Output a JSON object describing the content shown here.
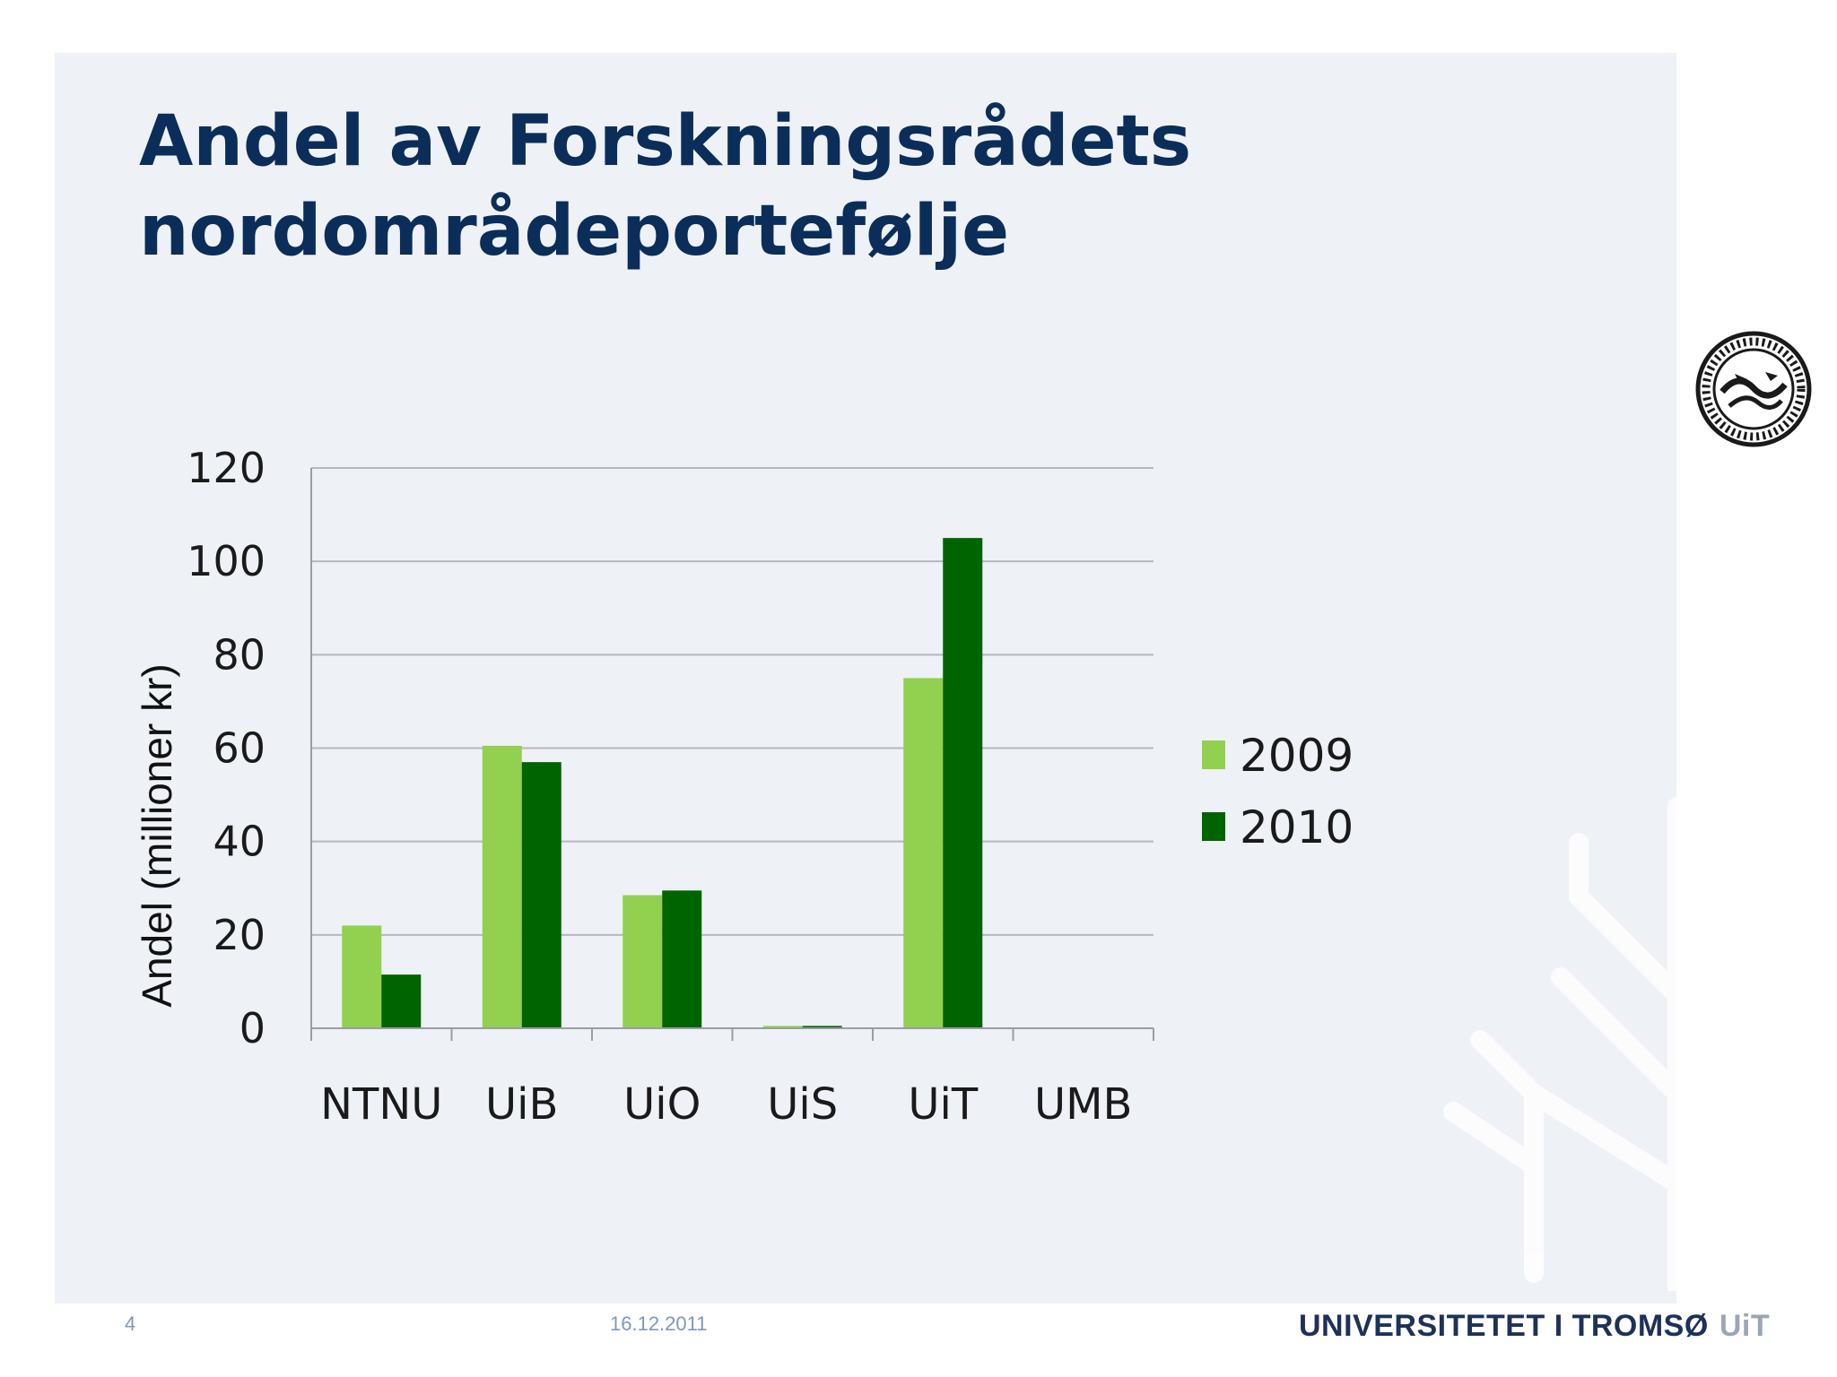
{
  "slide": {
    "title_line1": "Andel av Forskningsrådets",
    "title_line2": "nordområdeportefølje",
    "page_number": "4",
    "date": "16.12.2011",
    "brand_name": "UNIVERSITETET I TROMSØ",
    "brand_abbr": "UiT",
    "colors": {
      "title": "#0b2d59",
      "panel": "#eef1f5"
    }
  },
  "chart_data": {
    "type": "bar",
    "title": "",
    "ylabel": "Andel (millioner kr)",
    "xlabel": "",
    "categories": [
      "NTNU",
      "UiB",
      "UiO",
      "UiS",
      "UiT",
      "UMB"
    ],
    "series": [
      {
        "name": "2009",
        "color": "#92d050",
        "values": [
          22,
          60.5,
          28.5,
          0.5,
          75,
          0
        ]
      },
      {
        "name": "2010",
        "color": "#006400",
        "values": [
          11.5,
          57,
          29.5,
          0.5,
          105,
          0
        ]
      }
    ],
    "ylim": [
      0,
      120
    ],
    "yticks": [
      0,
      20,
      40,
      60,
      80,
      100,
      120
    ],
    "grid": true,
    "legend": "right"
  }
}
